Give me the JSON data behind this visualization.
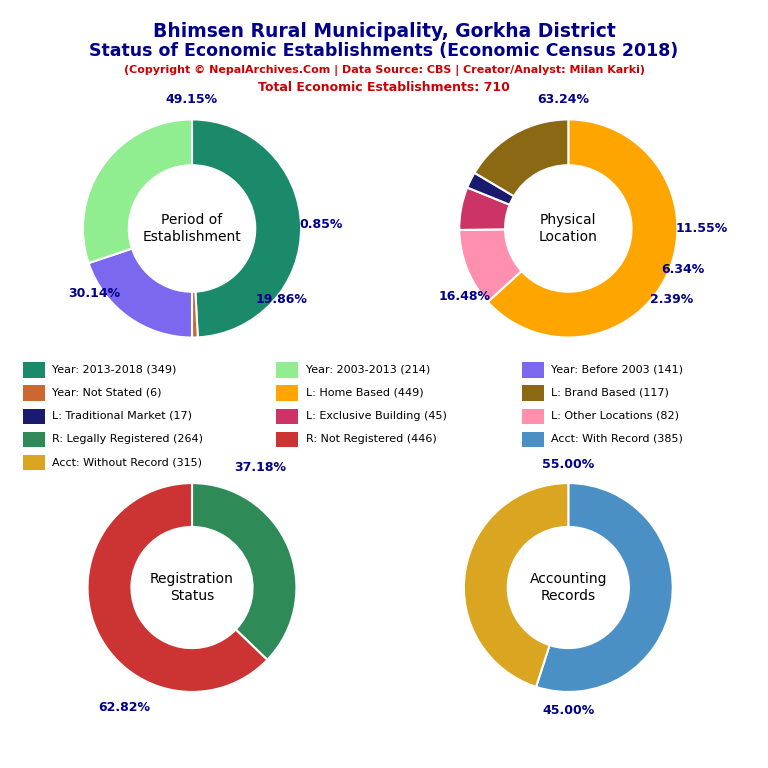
{
  "title_line1": "Bhimsen Rural Municipality, Gorkha District",
  "title_line2": "Status of Economic Establishments (Economic Census 2018)",
  "subtitle1": "(Copyright © NepalArchives.Com | Data Source: CBS | Creator/Analyst: Milan Karki)",
  "subtitle2": "Total Economic Establishments: 710",
  "pie1_label": "Period of\nEstablishment",
  "pie1_values": [
    349,
    6,
    141,
    214
  ],
  "pie1_pcts": [
    "49.15%",
    "0.85%",
    "19.86%",
    "30.14%"
  ],
  "pie1_colors": [
    "#1B8A6B",
    "#CC6633",
    "#7B68EE",
    "#90EE90"
  ],
  "pie2_label": "Physical\nLocation",
  "pie2_values": [
    449,
    82,
    45,
    17,
    117
  ],
  "pie2_pcts": [
    "63.24%",
    "11.55%",
    "6.34%",
    "2.39%",
    "16.48%"
  ],
  "pie2_colors": [
    "#FFA500",
    "#FF8FAF",
    "#CC3366",
    "#1A1A6E",
    "#8B6914"
  ],
  "pie3_label": "Registration\nStatus",
  "pie3_values": [
    264,
    446
  ],
  "pie3_pcts": [
    "37.18%",
    "62.82%"
  ],
  "pie3_colors": [
    "#2E8B57",
    "#CC3333"
  ],
  "pie4_label": "Accounting\nRecords",
  "pie4_values": [
    385,
    315
  ],
  "pie4_pcts": [
    "55.00%",
    "45.00%"
  ],
  "pie4_colors": [
    "#4A90C4",
    "#DAA520"
  ],
  "legend_items_col1": [
    {
      "label": "Year: 2013-2018 (349)",
      "color": "#1B8A6B"
    },
    {
      "label": "Year: Not Stated (6)",
      "color": "#CC6633"
    },
    {
      "label": "L: Traditional Market (17)",
      "color": "#1A1A6E"
    },
    {
      "label": "R: Legally Registered (264)",
      "color": "#2E8B57"
    },
    {
      "label": "Acct: Without Record (315)",
      "color": "#DAA520"
    }
  ],
  "legend_items_col2": [
    {
      "label": "Year: 2003-2013 (214)",
      "color": "#90EE90"
    },
    {
      "label": "L: Home Based (449)",
      "color": "#FFA500"
    },
    {
      "label": "L: Exclusive Building (45)",
      "color": "#CC3366"
    },
    {
      "label": "R: Not Registered (446)",
      "color": "#CC3333"
    }
  ],
  "legend_items_col3": [
    {
      "label": "Year: Before 2003 (141)",
      "color": "#7B68EE"
    },
    {
      "label": "L: Brand Based (117)",
      "color": "#8B6914"
    },
    {
      "label": "L: Other Locations (82)",
      "color": "#FF8FAF"
    },
    {
      "label": "Acct: With Record (385)",
      "color": "#4A90C4"
    }
  ],
  "title_color": "#00008B",
  "subtitle_color": "#CC0000",
  "pct_color": "#00008B",
  "center_label_color": "#000000",
  "bg_color": "#FFFFFF"
}
